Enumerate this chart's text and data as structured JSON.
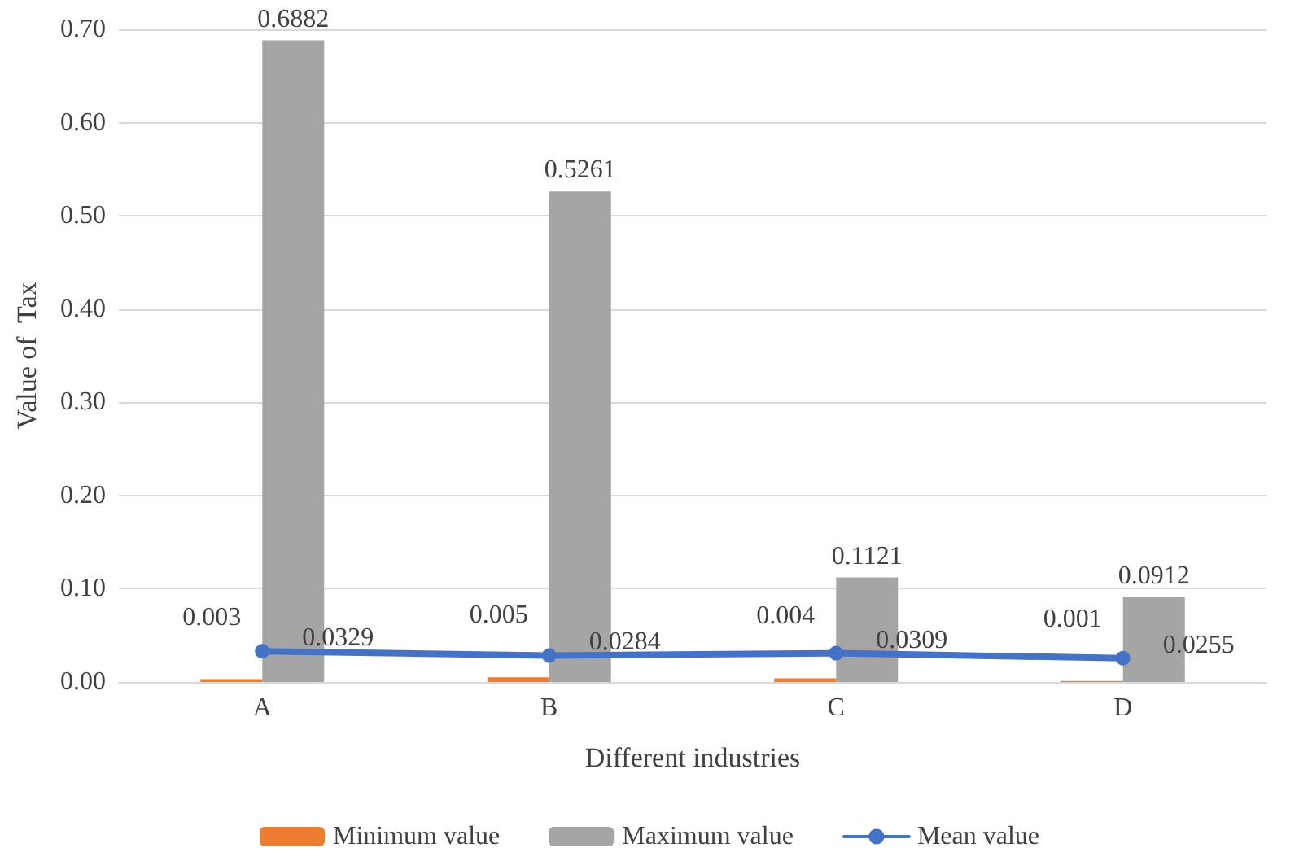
{
  "chart_data": {
    "type": "bar",
    "xlabel": "Different industries",
    "ylabel": "Value of  Tax",
    "categories": [
      "A",
      "B",
      "C",
      "D"
    ],
    "series": [
      {
        "name": "Minimum value",
        "color": "#ed7d31",
        "values": [
          0.003,
          0.005,
          0.004,
          0.001
        ]
      },
      {
        "name": "Maximum value",
        "color": "#a5a5a5",
        "values": [
          0.6882,
          0.5261,
          0.1121,
          0.0912
        ]
      },
      {
        "name": "Mean value",
        "type": "line",
        "color": "#4472c4",
        "values": [
          0.0329,
          0.0284,
          0.0309,
          0.0255
        ]
      }
    ],
    "ylim": [
      0,
      0.7
    ],
    "yticks": [
      {
        "value": 0,
        "label": "0.00"
      },
      {
        "value": 0.1,
        "label": "0.10"
      },
      {
        "value": 0.2,
        "label": "0.20"
      },
      {
        "value": 0.3,
        "label": "0.30"
      },
      {
        "value": 0.4,
        "label": "0.40"
      },
      {
        "value": 0.5,
        "label": "0.50"
      },
      {
        "value": 0.6,
        "label": "0.60"
      },
      {
        "value": 0.7,
        "label": "0.70"
      }
    ],
    "grid": "y",
    "legend": "bottom",
    "marker": "circle",
    "line_style": "solid",
    "data_labels": true
  }
}
